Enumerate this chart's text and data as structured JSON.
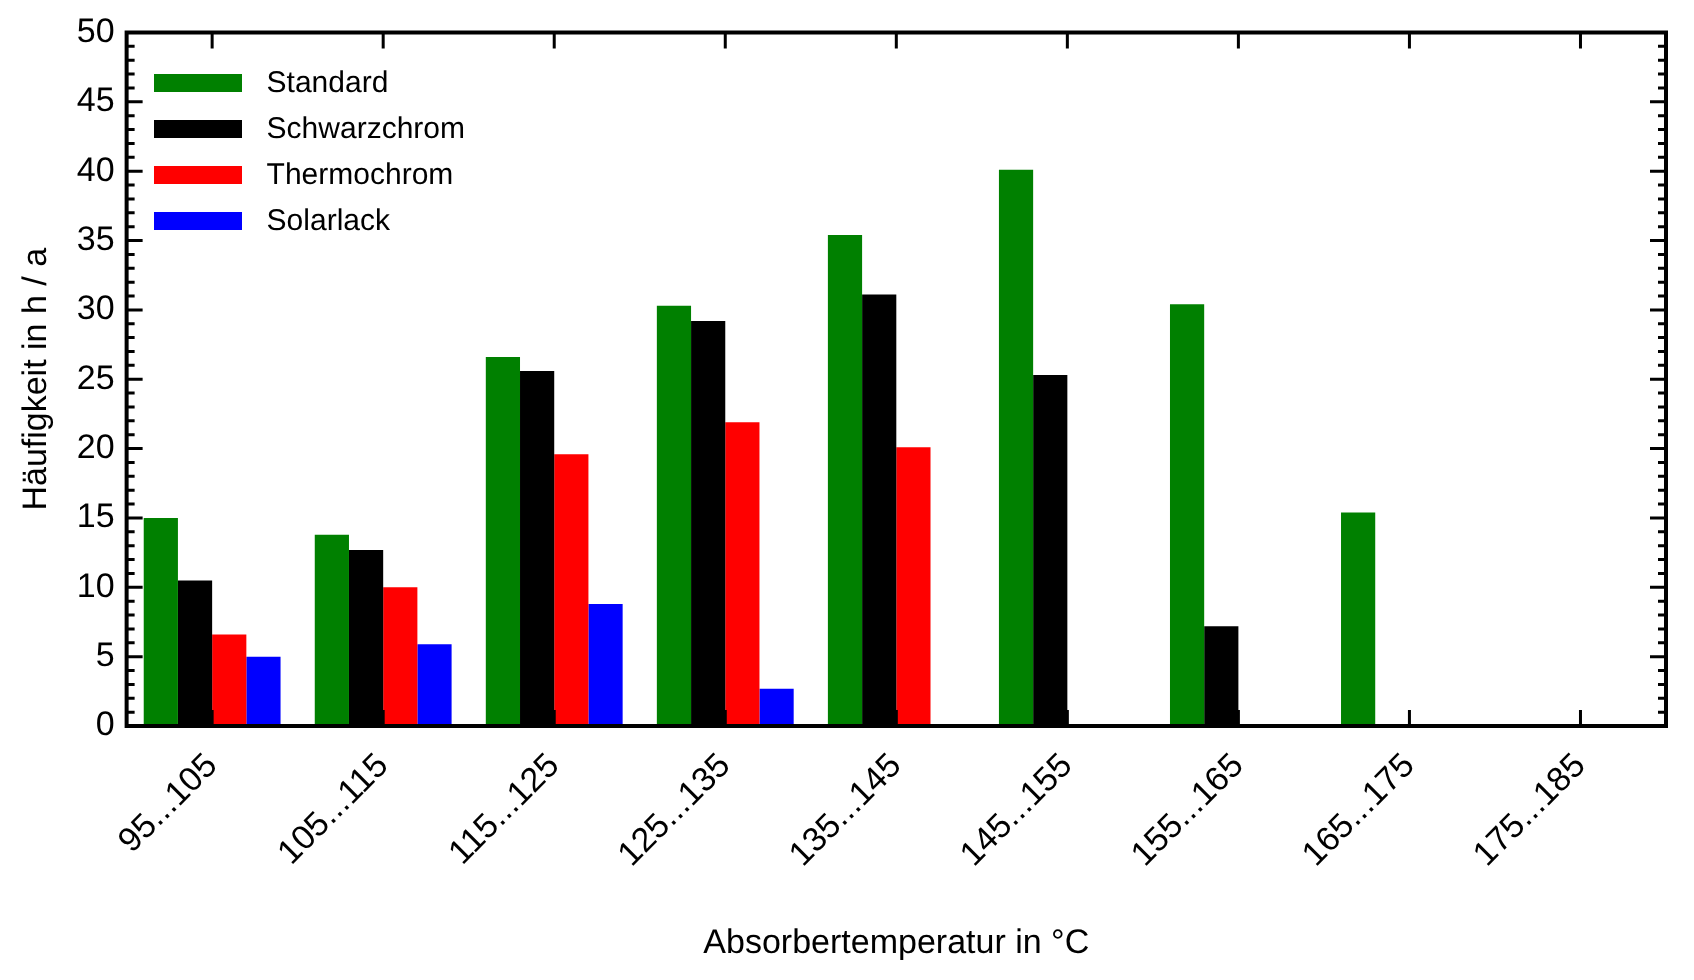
{
  "chart_data": {
    "type": "bar",
    "xlabel": "Absorbertemperatur in °C",
    "ylabel": "Häufigkeit in h / a",
    "categories": [
      "95...105",
      "105...115",
      "115...125",
      "125...135",
      "135...145",
      "145...155",
      "155...165",
      "165...175",
      "175...185"
    ],
    "series": [
      {
        "name": "Standard",
        "color": "#008000",
        "values": [
          15.0,
          13.8,
          26.6,
          30.3,
          35.4,
          40.1,
          30.4,
          15.4,
          0
        ]
      },
      {
        "name": "Schwarzchrom",
        "color": "#000000",
        "values": [
          10.5,
          12.7,
          25.6,
          29.2,
          31.1,
          25.3,
          7.2,
          0,
          0
        ]
      },
      {
        "name": "Thermochrom",
        "color": "#ff0000",
        "values": [
          6.6,
          10.0,
          19.6,
          21.9,
          20.1,
          0,
          0,
          0,
          0
        ]
      },
      {
        "name": "Solarlack",
        "color": "#0000ff",
        "values": [
          5.0,
          5.9,
          8.8,
          2.7,
          0,
          0,
          0,
          0,
          0
        ]
      }
    ],
    "ylim": [
      0,
      50
    ],
    "yticks": [
      0,
      5,
      10,
      15,
      20,
      25,
      30,
      35,
      40,
      45,
      50
    ],
    "grid": false,
    "legend": "top left"
  }
}
